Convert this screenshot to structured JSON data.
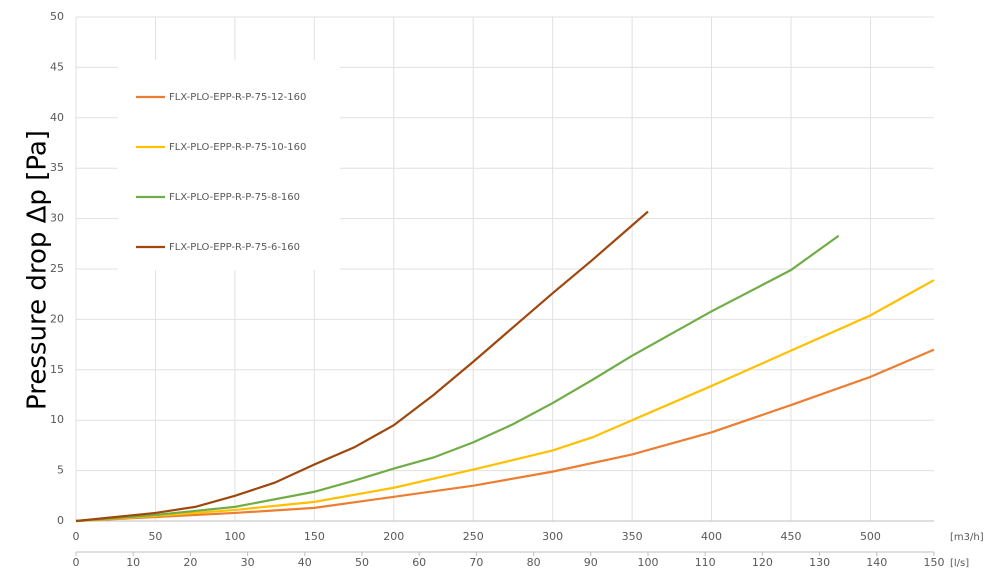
{
  "chart_data": {
    "type": "line",
    "y_label": "Pressure drop Δp [Pa]",
    "x_label": "[m3/h]",
    "x2_label": "[l/s]",
    "xlim": [
      0,
      540
    ],
    "xticks": [
      0,
      50,
      100,
      150,
      200,
      250,
      300,
      350,
      400,
      450,
      500
    ],
    "x2lim": [
      0,
      150
    ],
    "x2ticks": [
      0,
      10,
      20,
      30,
      40,
      50,
      60,
      70,
      80,
      90,
      100,
      110,
      120,
      130,
      140,
      150
    ],
    "ylim": [
      0,
      50
    ],
    "yticks": [
      0,
      5,
      10,
      15,
      20,
      25,
      30,
      35,
      40,
      45,
      50
    ],
    "grid": true,
    "legend": "upper left",
    "series": [
      {
        "name": "FLX-PLO-EPP-R-P-75-12-160",
        "color": "#ed7d31",
        "x": [
          0,
          50,
          100,
          150,
          200,
          250,
          300,
          350,
          400,
          450,
          500,
          540
        ],
        "values": [
          0,
          0.4,
          0.8,
          1.3,
          2.4,
          3.5,
          4.9,
          6.6,
          8.8,
          11.5,
          14.3,
          17.0
        ]
      },
      {
        "name": "FLX-PLO-EPP-R-P-75-10-160",
        "color": "#ffc000",
        "x": [
          0,
          50,
          100,
          150,
          200,
          250,
          300,
          325,
          350,
          400,
          450,
          500,
          540
        ],
        "values": [
          0,
          0.5,
          1.1,
          1.9,
          3.3,
          5.1,
          7.0,
          8.3,
          10.0,
          13.4,
          16.9,
          20.4,
          23.9
        ]
      },
      {
        "name": "FLX-PLO-EPP-R-P-75-8-160",
        "color": "#70ad47",
        "x": [
          0,
          50,
          100,
          150,
          175,
          200,
          225,
          250,
          275,
          300,
          325,
          350,
          400,
          450,
          480
        ],
        "values": [
          0,
          0.6,
          1.4,
          2.9,
          4.0,
          5.2,
          6.3,
          7.8,
          9.6,
          11.7,
          14.0,
          16.4,
          20.8,
          24.9,
          28.3
        ]
      },
      {
        "name": "FLX-PLO-EPP-R-P-75-6-160",
        "color": "#9e480e",
        "x": [
          0,
          50,
          75,
          100,
          125,
          150,
          175,
          200,
          225,
          250,
          275,
          300,
          325,
          360
        ],
        "values": [
          0,
          0.8,
          1.4,
          2.5,
          3.8,
          5.6,
          7.3,
          9.5,
          12.5,
          15.8,
          19.2,
          22.6,
          25.9,
          30.7
        ]
      }
    ]
  }
}
